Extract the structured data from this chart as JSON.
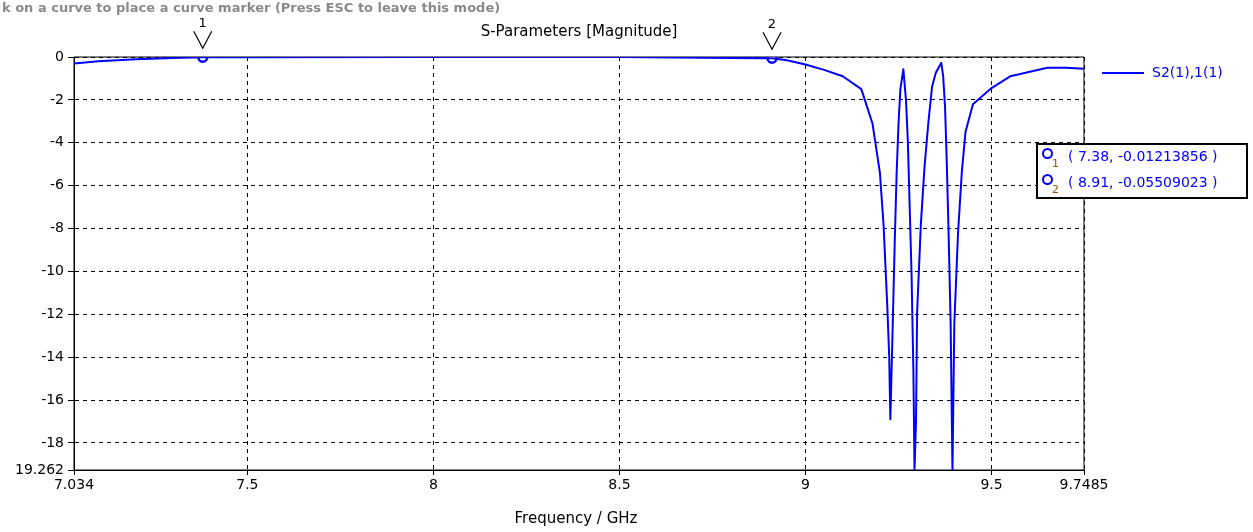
{
  "chart_data": {
    "type": "line",
    "title": "S-Parameters [Magnitude]",
    "xlabel": "Frequency / GHz",
    "series": [
      {
        "name": "S2(1),1(1)",
        "color": "#0000ff",
        "marker": "none",
        "line_style": "solid",
        "x": [
          7.034,
          7.1,
          7.2,
          7.3,
          7.38,
          8.0,
          8.5,
          8.8,
          8.91,
          8.95,
          9.0,
          9.05,
          9.1,
          9.15,
          9.18,
          9.2,
          9.21,
          9.22,
          9.225,
          9.228,
          9.235,
          9.24,
          9.245,
          9.25,
          9.255,
          9.263,
          9.27,
          9.275,
          9.28,
          9.285,
          9.29,
          9.293,
          9.297,
          9.3,
          9.31,
          9.32,
          9.33,
          9.34,
          9.35,
          9.365,
          9.37,
          9.375,
          9.38,
          9.385,
          9.39,
          9.395,
          9.4,
          9.41,
          9.42,
          9.43,
          9.45,
          9.5,
          9.55,
          9.6,
          9.65,
          9.7,
          9.7485
        ],
        "values": [
          -0.3,
          -0.2,
          -0.1,
          -0.05,
          -0.01,
          0,
          0,
          -0.05,
          -0.06,
          -0.15,
          -0.35,
          -0.6,
          -0.9,
          -1.5,
          -3.1,
          -5.4,
          -7.9,
          -11.7,
          -14,
          -16.9,
          -12.1,
          -8.5,
          -5.4,
          -3.1,
          -1.5,
          -0.57,
          -2,
          -3.9,
          -7,
          -10.1,
          -14.7,
          -19.262,
          -17,
          -11.9,
          -7.8,
          -5.1,
          -3.1,
          -1.4,
          -0.75,
          -0.27,
          -0.9,
          -2.3,
          -5.1,
          -8.5,
          -12.4,
          -19.262,
          -12.4,
          -8.2,
          -5.4,
          -3.5,
          -2.2,
          -1.45,
          -0.9,
          -0.7,
          -0.5,
          -0.5,
          -0.55
        ]
      },
      {
        "color": "#0000ff",
        "type": "scatter",
        "marker": "circle",
        "x": [
          7.38,
          8.91
        ],
        "values": [
          -0.01213856,
          -0.05509023
        ]
      }
    ],
    "xlim": [
      7.034,
      9.7485
    ],
    "xticks": [
      7.034,
      7.5,
      8,
      8.5,
      9,
      9.5,
      9.7485
    ],
    "ylim": [
      -19.262,
      0
    ],
    "yticks": [
      {
        "value": -19.262,
        "label": "19.262"
      },
      -18,
      -16,
      -14,
      -12,
      -10,
      -8,
      -6,
      -4,
      -2,
      0
    ],
    "grid": true,
    "legend": "right",
    "annotations": [
      "k on a curve to place a curve marker (Press ESC to leave this mode)",
      {
        "text": "1",
        "x": 7.38,
        "y": -0.01213856
      },
      {
        "text": "2",
        "x": 8.91,
        "y": -0.05509023
      },
      "( 7.38, -0.01213856 )",
      "( 8.91, -0.05509023 )"
    ]
  }
}
